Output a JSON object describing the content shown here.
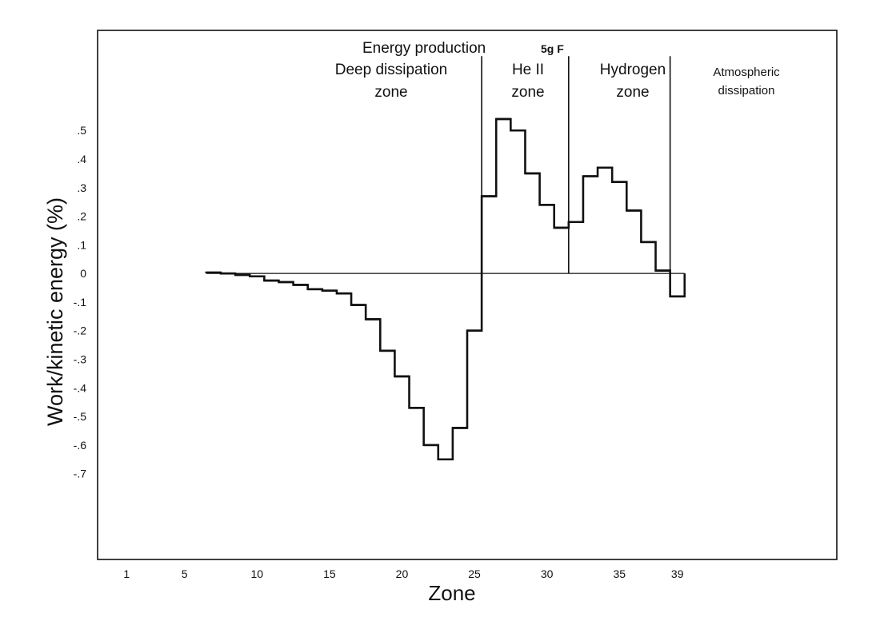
{
  "chart_data": {
    "type": "line",
    "style": "step",
    "xlabel": "Zone",
    "ylabel": "Work/kinetic energy (%)",
    "x_ticks": [
      "1",
      "5",
      "10",
      "15",
      "20",
      "25",
      "30",
      "35",
      "39"
    ],
    "y_ticks": [
      ".5",
      ".4",
      ".3",
      ".2",
      ".1",
      "0",
      "-.1",
      "-.2",
      "-.3",
      "-.4",
      "-.5",
      "-.6",
      "-.7"
    ],
    "xlim": [
      -1,
      50
    ],
    "ylim": [
      -1.0,
      0.85
    ],
    "grid": false,
    "annotations": {
      "energy_production": "Energy production",
      "model": "5g F",
      "deep_dissipation": [
        "Deep dissipation",
        "zone"
      ],
      "he2": [
        "He II",
        "zone"
      ],
      "hydrogen": [
        "Hydrogen",
        "zone"
      ],
      "atmospheric": [
        "Atmospheric",
        "dissipation"
      ]
    },
    "zone_boundaries": [
      25.5,
      31.5,
      38.5
    ],
    "series": [
      {
        "values": [
          {
            "x": 7,
            "y": 0.003
          },
          {
            "x": 8,
            "y": 0.0
          },
          {
            "x": 9,
            "y": -0.005
          },
          {
            "x": 10,
            "y": -0.01
          },
          {
            "x": 11,
            "y": -0.025
          },
          {
            "x": 12,
            "y": -0.03
          },
          {
            "x": 13,
            "y": -0.04
          },
          {
            "x": 14,
            "y": -0.055
          },
          {
            "x": 15,
            "y": -0.06
          },
          {
            "x": 16,
            "y": -0.07
          },
          {
            "x": 17,
            "y": -0.11
          },
          {
            "x": 18,
            "y": -0.16
          },
          {
            "x": 19,
            "y": -0.27
          },
          {
            "x": 20,
            "y": -0.36
          },
          {
            "x": 21,
            "y": -0.47
          },
          {
            "x": 22,
            "y": -0.6
          },
          {
            "x": 23,
            "y": -0.65
          },
          {
            "x": 24,
            "y": -0.54
          },
          {
            "x": 25,
            "y": -0.2
          },
          {
            "x": 26,
            "y": 0.27
          },
          {
            "x": 27,
            "y": 0.54
          },
          {
            "x": 28,
            "y": 0.5
          },
          {
            "x": 29,
            "y": 0.35
          },
          {
            "x": 30,
            "y": 0.24
          },
          {
            "x": 31,
            "y": 0.16
          },
          {
            "x": 32,
            "y": 0.18
          },
          {
            "x": 33,
            "y": 0.34
          },
          {
            "x": 34,
            "y": 0.37
          },
          {
            "x": 35,
            "y": 0.32
          },
          {
            "x": 36,
            "y": 0.22
          },
          {
            "x": 37,
            "y": 0.11
          },
          {
            "x": 38,
            "y": 0.01
          },
          {
            "x": 39,
            "y": -0.08
          }
        ]
      }
    ]
  }
}
